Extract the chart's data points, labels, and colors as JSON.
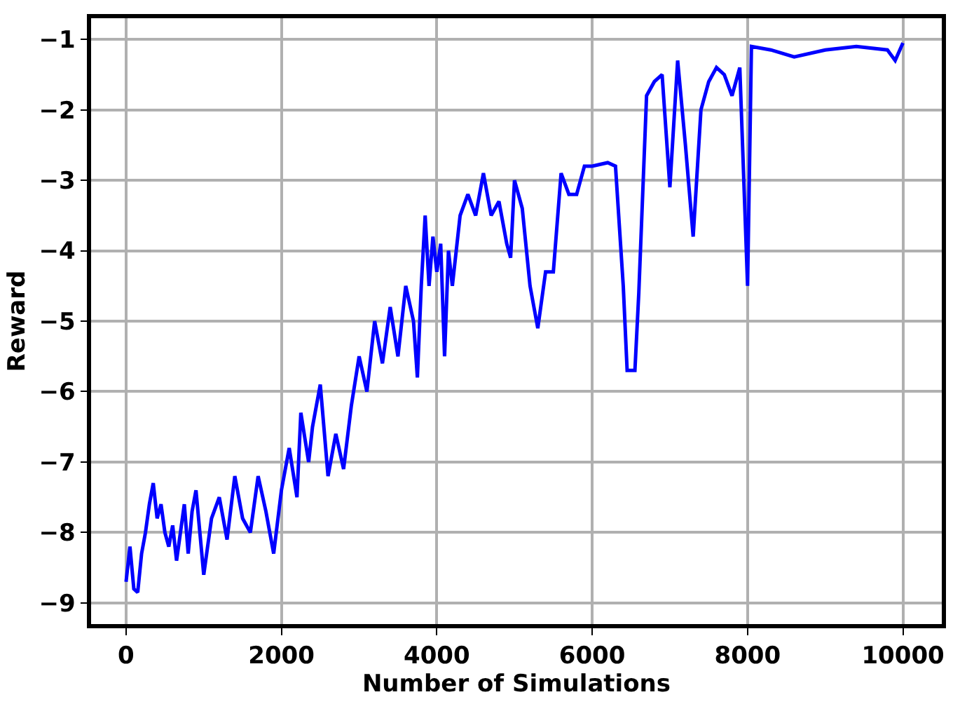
{
  "chart_data": {
    "type": "line",
    "xlabel": "Number of Simulations",
    "ylabel": "Reward",
    "x": [
      0,
      50,
      100,
      150,
      200,
      250,
      300,
      350,
      400,
      450,
      500,
      550,
      600,
      650,
      700,
      750,
      800,
      850,
      900,
      950,
      1000,
      1100,
      1200,
      1300,
      1400,
      1500,
      1600,
      1700,
      1800,
      1900,
      2000,
      2100,
      2200,
      2250,
      2350,
      2400,
      2500,
      2600,
      2700,
      2800,
      2900,
      3000,
      3100,
      3200,
      3300,
      3400,
      3500,
      3600,
      3700,
      3750,
      3800,
      3850,
      3900,
      3950,
      4000,
      4050,
      4100,
      4150,
      4200,
      4300,
      4400,
      4500,
      4600,
      4700,
      4800,
      4900,
      4950,
      5000,
      5100,
      5200,
      5300,
      5400,
      5500,
      5600,
      5700,
      5800,
      5900,
      6000,
      6200,
      6300,
      6400,
      6450,
      6550,
      6600,
      6700,
      6800,
      6900,
      7000,
      7100,
      7200,
      7300,
      7400,
      7500,
      7600,
      7700,
      7800,
      7900,
      8000,
      8050,
      8300,
      8600,
      9000,
      9400,
      9800,
      9900,
      10000
    ],
    "series": [
      {
        "color": "#0000ff",
        "values": [
          -8.7,
          -8.2,
          -8.8,
          -8.85,
          -8.3,
          -8.0,
          -7.6,
          -7.3,
          -7.8,
          -7.6,
          -8.0,
          -8.2,
          -7.9,
          -8.4,
          -8.0,
          -7.6,
          -8.3,
          -7.7,
          -7.4,
          -8.0,
          -8.6,
          -7.8,
          -7.5,
          -8.1,
          -7.2,
          -7.8,
          -8.0,
          -7.2,
          -7.7,
          -8.3,
          -7.4,
          -6.8,
          -7.5,
          -6.3,
          -7.0,
          -6.5,
          -5.9,
          -7.2,
          -6.6,
          -7.1,
          -6.2,
          -5.5,
          -6.0,
          -5.0,
          -5.6,
          -4.8,
          -5.5,
          -4.5,
          -5.0,
          -5.8,
          -4.5,
          -3.5,
          -4.5,
          -3.8,
          -4.3,
          -3.9,
          -5.5,
          -4.0,
          -4.5,
          -3.5,
          -3.2,
          -3.5,
          -2.9,
          -3.5,
          -3.3,
          -3.9,
          -4.1,
          -3.0,
          -3.4,
          -4.5,
          -5.1,
          -4.3,
          -4.3,
          -2.9,
          -3.2,
          -3.2,
          -2.8,
          -2.8,
          -2.75,
          -2.8,
          -4.5,
          -5.7,
          -5.7,
          -4.6,
          -1.8,
          -1.6,
          -1.5,
          -3.1,
          -1.3,
          -2.5,
          -3.8,
          -2.0,
          -1.6,
          -1.4,
          -1.5,
          -1.8,
          -1.4,
          -4.5,
          -1.1,
          -1.15,
          -1.25,
          -1.15,
          -1.1,
          -1.15,
          -1.3,
          -1.05
        ]
      }
    ],
    "xlim": [
      -450,
      10500
    ],
    "xticks": [
      0,
      2000,
      4000,
      6000,
      8000,
      10000
    ],
    "ylim": [
      -9.3,
      -0.7
    ],
    "yticks": [
      -9,
      -8,
      -7,
      -6,
      -5,
      -4,
      -3,
      -2,
      -1
    ],
    "grid": true,
    "legend": false,
    "marker": "none",
    "line_style": "solid"
  }
}
